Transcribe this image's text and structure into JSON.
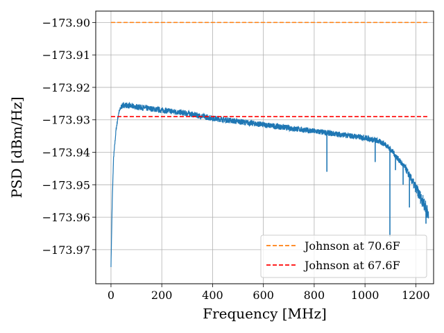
{
  "chart_data": {
    "type": "line",
    "title": "",
    "xlabel": "Frequency [MHz]",
    "ylabel": "PSD [dBm/Hz]",
    "xlim": [
      -60,
      1270
    ],
    "ylim": [
      -173.9805,
      -173.8965
    ],
    "xticks": [
      0,
      200,
      400,
      600,
      800,
      1000,
      1200
    ],
    "yticks": [
      -173.9,
      -173.91,
      -173.92,
      -173.93,
      -173.94,
      -173.95,
      -173.96,
      -173.97
    ],
    "ytick_labels": [
      "−173.90",
      "−173.91",
      "−173.92",
      "−173.93",
      "−173.94",
      "−173.95",
      "−173.96",
      "−173.97"
    ],
    "grid": true,
    "legend_position": "lower-right",
    "series": [
      {
        "color": "#1f77b4",
        "style": "solid",
        "x": [
          0,
          5,
          10,
          20,
          30,
          40,
          50,
          60,
          80,
          100,
          150,
          200,
          250,
          300,
          350,
          400,
          450,
          500,
          550,
          600,
          650,
          700,
          750,
          800,
          850,
          900,
          950,
          1000,
          1050,
          1080,
          1100,
          1120,
          1140,
          1160,
          1180,
          1200,
          1220,
          1240,
          1250
        ],
        "y": [
          -173.975,
          -173.955,
          -173.942,
          -173.933,
          -173.928,
          -173.926,
          -173.9255,
          -173.9255,
          -173.9258,
          -173.926,
          -173.9265,
          -173.927,
          -173.9275,
          -173.928,
          -173.9288,
          -173.9295,
          -173.93,
          -173.9305,
          -173.931,
          -173.9315,
          -173.932,
          -173.9325,
          -173.933,
          -173.9335,
          -173.934,
          -173.9345,
          -173.935,
          -173.9355,
          -173.9365,
          -173.9375,
          -173.939,
          -173.941,
          -173.943,
          -173.945,
          -173.948,
          -173.951,
          -173.954,
          -173.957,
          -173.96
        ],
        "noise_band": 0.0018,
        "dips": [
          {
            "x": 850,
            "y": -173.946
          },
          {
            "x": 1040,
            "y": -173.943
          },
          {
            "x": 1098,
            "y": -173.966
          },
          {
            "x": 1120,
            "y": -173.9455
          },
          {
            "x": 1150,
            "y": -173.95
          },
          {
            "x": 1175,
            "y": -173.957
          },
          {
            "x": 1240,
            "y": -173.962
          }
        ]
      },
      {
        "name": "Johnson at 70.6F",
        "color": "#ff7f0e",
        "style": "dashed",
        "x": [
          0,
          1250
        ],
        "y": [
          -173.9,
          -173.9
        ]
      },
      {
        "name": "Johnson at 67.6F",
        "color": "#ff0000",
        "style": "dashed",
        "x": [
          0,
          1250
        ],
        "y": [
          -173.929,
          -173.929
        ]
      }
    ]
  }
}
